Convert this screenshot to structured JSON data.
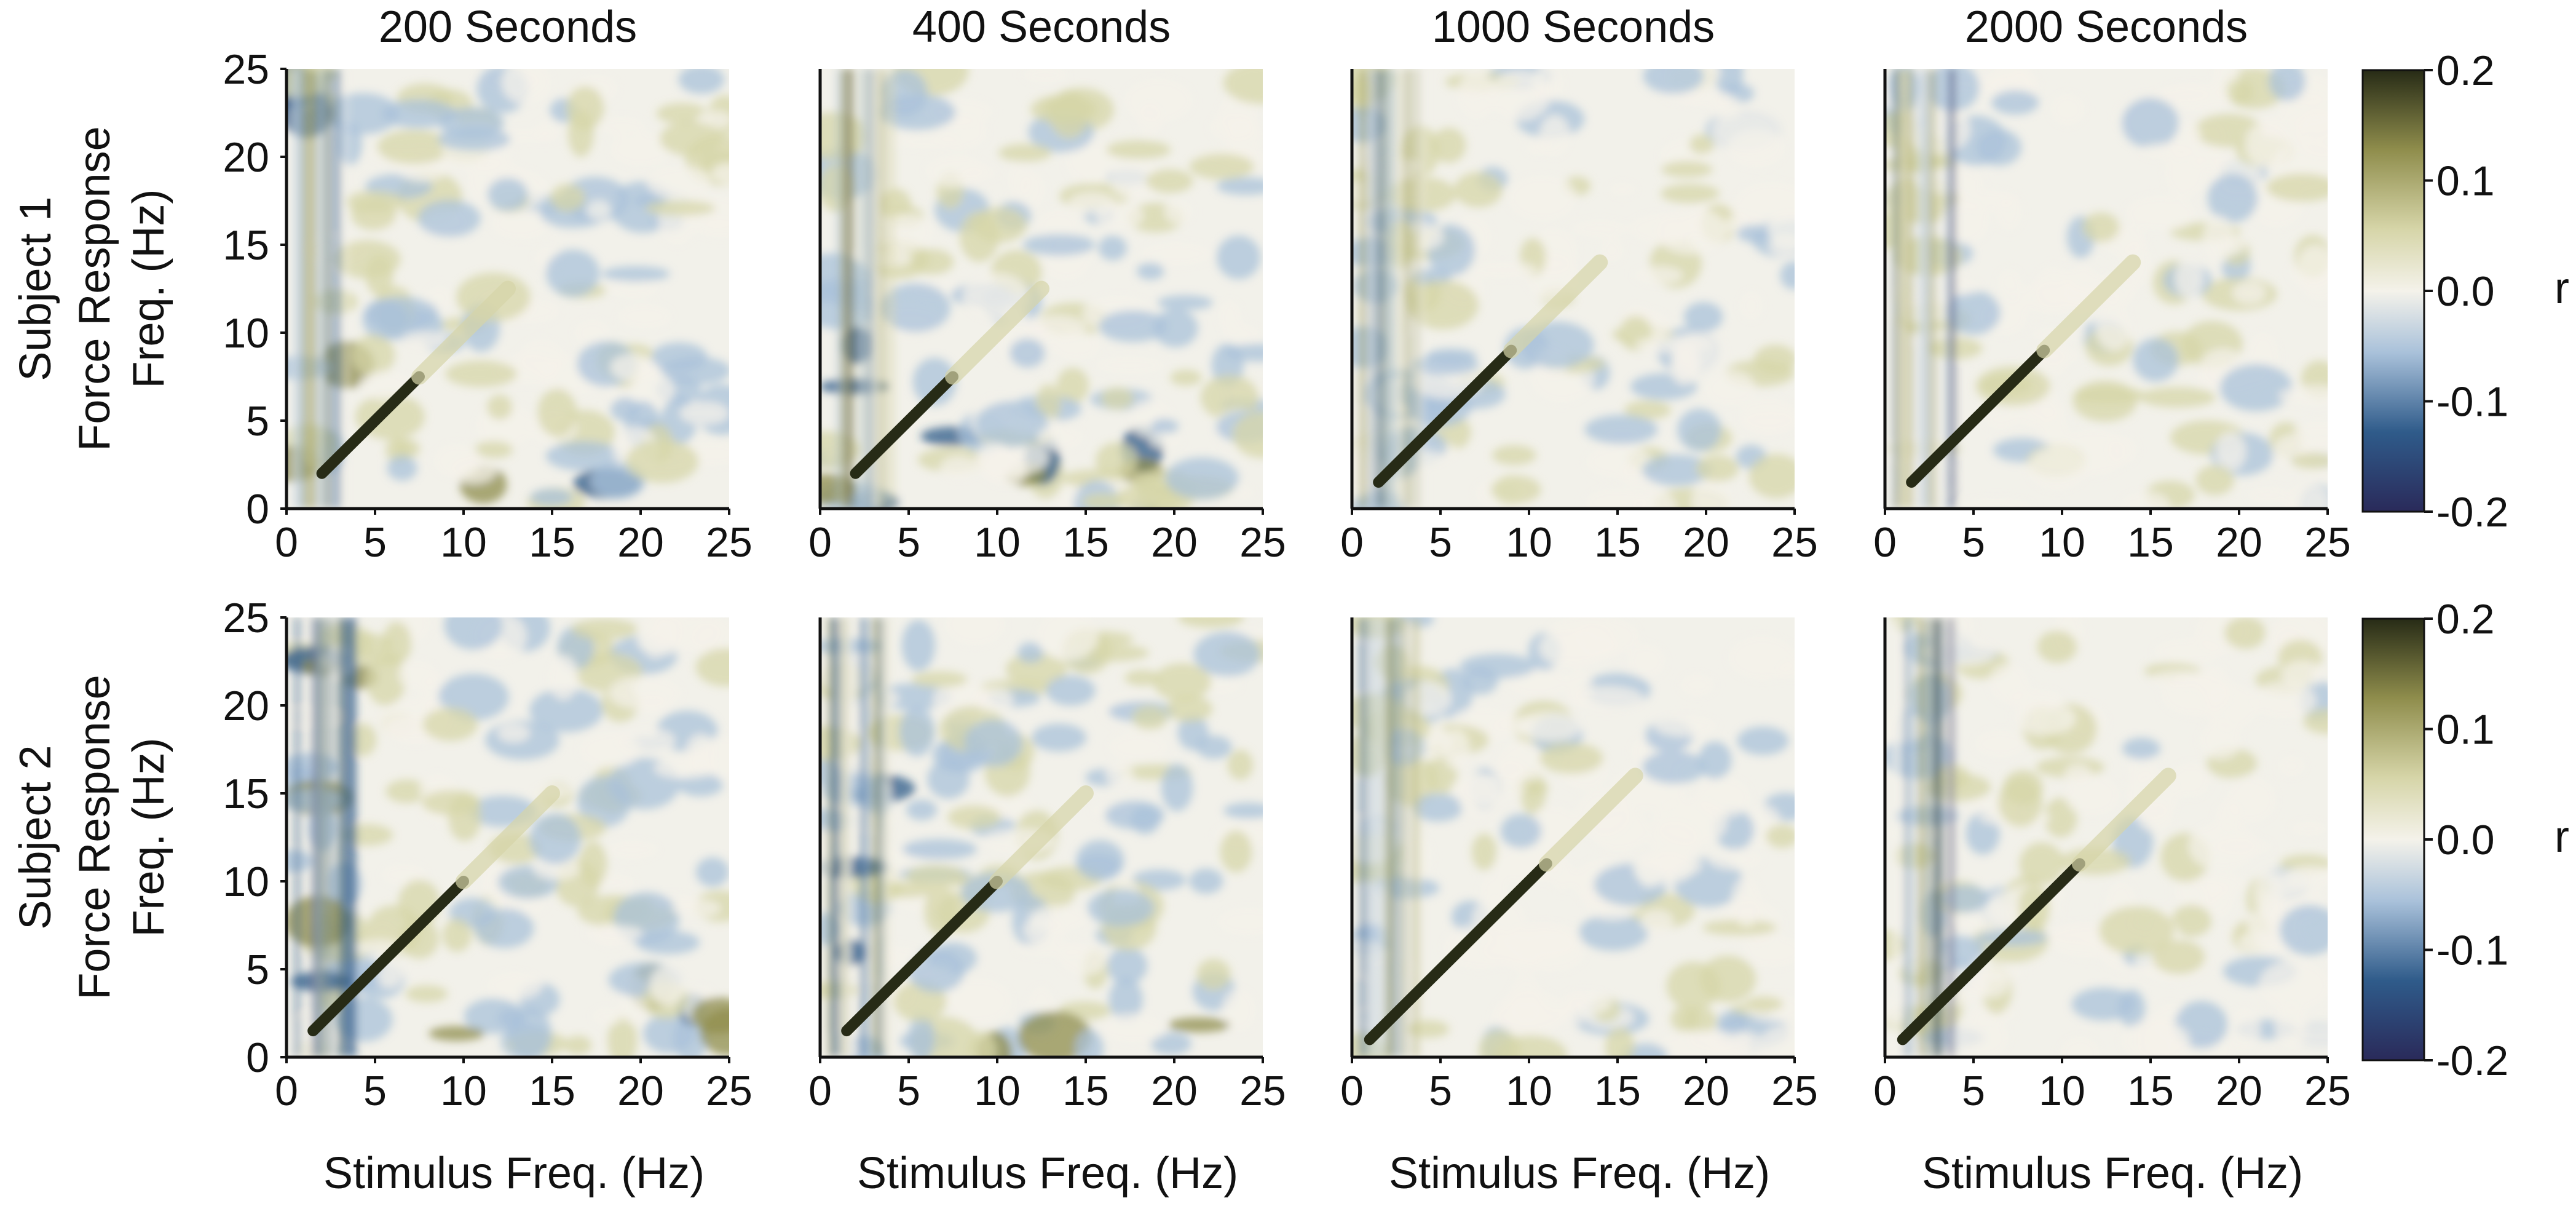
{
  "figure": {
    "colorbar": {
      "ticks": [
        "0.2",
        "0.1",
        "0.0",
        "-0.1",
        "-0.2"
      ],
      "label": "r",
      "colors": [
        "#2a2a5a",
        "#2f5b8a",
        "#a9c1da",
        "#f4f2ea",
        "#d6d5a8",
        "#8f8d4c",
        "#272b16"
      ]
    }
  },
  "chart_data": [
    {
      "type": "heatmap",
      "row": "Subject 1",
      "column": "200 Seconds",
      "title": "200 Seconds",
      "ylabel": "Subject 1\nForce Response\nFreq. (Hz)",
      "xlabel": "",
      "xlim": [
        0,
        25
      ],
      "ylim": [
        0,
        25
      ],
      "vlim": [
        -0.2,
        0.2
      ],
      "xticks": [
        "0",
        "5",
        "10",
        "15",
        "20",
        "25"
      ],
      "yticks": [
        "0",
        "5",
        "10",
        "15",
        "20",
        "25"
      ],
      "diagonal_r": 0.2,
      "diagonal_extent_hz": [
        2,
        7.5
      ]
    },
    {
      "type": "heatmap",
      "row": "Subject 1",
      "column": "400 Seconds",
      "title": "400 Seconds",
      "ylabel": "",
      "xlabel": "",
      "xlim": [
        0,
        25
      ],
      "ylim": [
        0,
        25
      ],
      "vlim": [
        -0.2,
        0.2
      ],
      "xticks": [
        "0",
        "5",
        "10",
        "15",
        "20",
        "25"
      ],
      "yticks": [],
      "diagonal_r": 0.2,
      "diagonal_extent_hz": [
        2,
        7.5
      ]
    },
    {
      "type": "heatmap",
      "row": "Subject 1",
      "column": "1000 Seconds",
      "title": "1000 Seconds",
      "ylabel": "",
      "xlabel": "",
      "xlim": [
        0,
        25
      ],
      "ylim": [
        0,
        25
      ],
      "vlim": [
        -0.2,
        0.2
      ],
      "xticks": [
        "0",
        "5",
        "10",
        "15",
        "20",
        "25"
      ],
      "yticks": [],
      "diagonal_r": 0.2,
      "diagonal_extent_hz": [
        1.5,
        9
      ]
    },
    {
      "type": "heatmap",
      "row": "Subject 1",
      "column": "2000 Seconds",
      "title": "2000 Seconds",
      "ylabel": "",
      "xlabel": "",
      "xlim": [
        0,
        25
      ],
      "ylim": [
        0,
        25
      ],
      "vlim": [
        -0.2,
        0.2
      ],
      "xticks": [
        "0",
        "5",
        "10",
        "15",
        "20",
        "25"
      ],
      "yticks": [],
      "diagonal_r": 0.2,
      "diagonal_extent_hz": [
        1.5,
        9
      ]
    },
    {
      "type": "heatmap",
      "row": "Subject 2",
      "column": "200 Seconds",
      "title": "",
      "ylabel": "Subject 2\nForce Response\nFreq. (Hz)",
      "xlabel": "Stimulus Freq. (Hz)",
      "xlim": [
        0,
        25
      ],
      "ylim": [
        0,
        25
      ],
      "vlim": [
        -0.2,
        0.2
      ],
      "xticks": [
        "0",
        "5",
        "10",
        "15",
        "20",
        "25"
      ],
      "yticks": [
        "0",
        "5",
        "10",
        "15",
        "20",
        "25"
      ],
      "diagonal_r": 0.2,
      "diagonal_extent_hz": [
        1.5,
        10
      ]
    },
    {
      "type": "heatmap",
      "row": "Subject 2",
      "column": "400 Seconds",
      "title": "",
      "ylabel": "",
      "xlabel": "Stimulus Freq. (Hz)",
      "xlim": [
        0,
        25
      ],
      "ylim": [
        0,
        25
      ],
      "vlim": [
        -0.2,
        0.2
      ],
      "xticks": [
        "0",
        "5",
        "10",
        "15",
        "20",
        "25"
      ],
      "yticks": [],
      "diagonal_r": 0.2,
      "diagonal_extent_hz": [
        1.5,
        10
      ]
    },
    {
      "type": "heatmap",
      "row": "Subject 2",
      "column": "1000 Seconds",
      "title": "",
      "ylabel": "",
      "xlabel": "Stimulus Freq. (Hz)",
      "xlim": [
        0,
        25
      ],
      "ylim": [
        0,
        25
      ],
      "vlim": [
        -0.2,
        0.2
      ],
      "xticks": [
        "0",
        "5",
        "10",
        "15",
        "20",
        "25"
      ],
      "yticks": [],
      "diagonal_r": 0.2,
      "diagonal_extent_hz": [
        1,
        11
      ]
    },
    {
      "type": "heatmap",
      "row": "Subject 2",
      "column": "2000 Seconds",
      "title": "",
      "ylabel": "",
      "xlabel": "Stimulus Freq. (Hz)",
      "xlim": [
        0,
        25
      ],
      "ylim": [
        0,
        25
      ],
      "vlim": [
        -0.2,
        0.2
      ],
      "xticks": [
        "0",
        "5",
        "10",
        "15",
        "20",
        "25"
      ],
      "yticks": [],
      "diagonal_r": 0.2,
      "diagonal_extent_hz": [
        1,
        11
      ]
    }
  ]
}
